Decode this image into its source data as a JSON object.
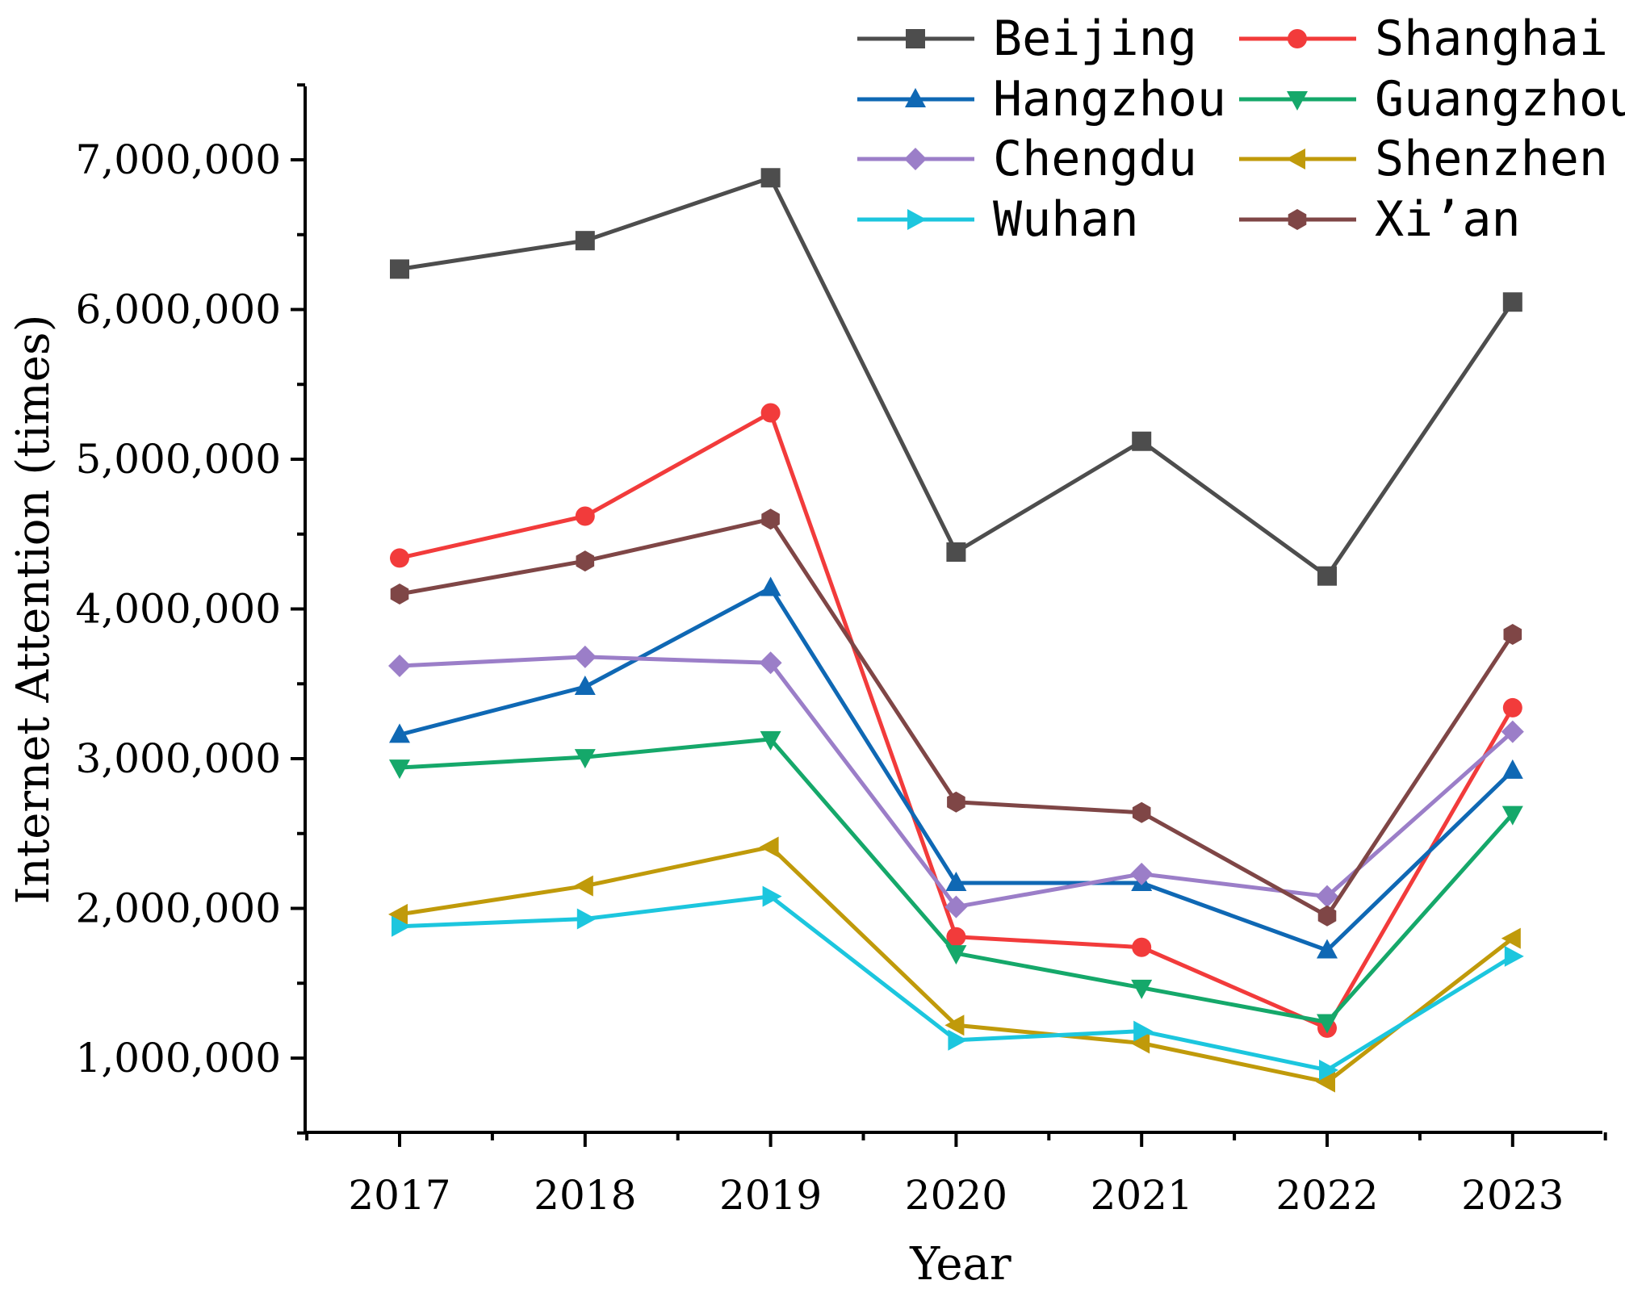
{
  "chart_data": {
    "type": "line",
    "title": "",
    "xlabel": "Year",
    "ylabel": "Internet Attention (times)",
    "categories": [
      "2017",
      "2018",
      "2019",
      "2020",
      "2021",
      "2022",
      "2023"
    ],
    "ylim": [
      500000,
      7500000
    ],
    "yticks": [
      1000000,
      2000000,
      3000000,
      4000000,
      5000000,
      6000000,
      7000000
    ],
    "ytick_labels": [
      "1,000,000",
      "2,000,000",
      "3,000,000",
      "4,000,000",
      "5,000,000",
      "6,000,000",
      "7,000,000"
    ],
    "grid": false,
    "legend_position": "top-right",
    "series": [
      {
        "name": "Beijing",
        "color": "#4d4d4d",
        "marker": "square",
        "values": [
          6270000,
          6460000,
          6880000,
          4380000,
          5120000,
          4220000,
          6050000
        ]
      },
      {
        "name": "Shanghai",
        "color": "#f23b3b",
        "marker": "circle",
        "values": [
          4340000,
          4620000,
          5310000,
          1810000,
          1740000,
          1200000,
          3340000
        ]
      },
      {
        "name": "Hangzhou",
        "color": "#0f68b4",
        "marker": "triangle-up",
        "values": [
          3160000,
          3480000,
          4140000,
          2170000,
          2170000,
          1720000,
          2920000
        ]
      },
      {
        "name": "Guangzhou",
        "color": "#15a86a",
        "marker": "triangle-down",
        "values": [
          2940000,
          3010000,
          3130000,
          1700000,
          1470000,
          1240000,
          2630000
        ]
      },
      {
        "name": "Chengdu",
        "color": "#9b7ec8",
        "marker": "diamond",
        "values": [
          3620000,
          3680000,
          3640000,
          2010000,
          2230000,
          2080000,
          3180000
        ]
      },
      {
        "name": "Shenzhen",
        "color": "#c09a0a",
        "marker": "triangle-left",
        "values": [
          1960000,
          2150000,
          2410000,
          1220000,
          1100000,
          840000,
          1800000
        ]
      },
      {
        "name": "Wuhan",
        "color": "#1cc6de",
        "marker": "triangle-right",
        "values": [
          1880000,
          1930000,
          2080000,
          1120000,
          1180000,
          920000,
          1680000
        ]
      },
      {
        "name": "Xi’an",
        "color": "#7f4646",
        "marker": "hexagon",
        "values": [
          4100000,
          4320000,
          4600000,
          2710000,
          2640000,
          1950000,
          3830000
        ]
      }
    ]
  }
}
